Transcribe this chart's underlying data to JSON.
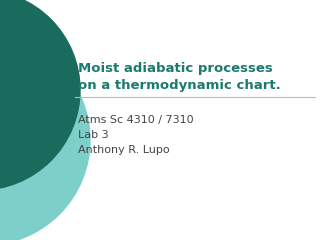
{
  "title_line1": "Moist adiabatic processes",
  "title_line2": "on a thermodynamic chart.",
  "subtitle_line1": "Atms Sc 4310 / 7310",
  "subtitle_line2": "Lab 3",
  "subtitle_line3": "Anthony R. Lupo",
  "title_color": "#1a7a6e",
  "subtitle_color": "#444444",
  "background_color": "#ffffff",
  "circle_color_outer": "#7dcfca",
  "circle_color_inner": "#1a6b5e",
  "divider_color": "#bbbbbb",
  "fig_width": 3.2,
  "fig_height": 2.4,
  "dpi": 100
}
